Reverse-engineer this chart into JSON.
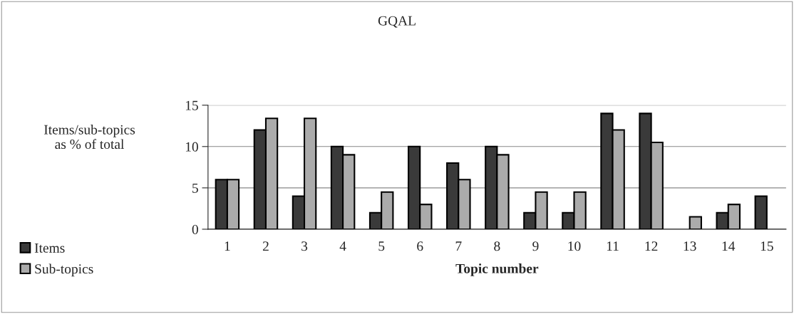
{
  "chart_data": {
    "type": "bar",
    "title": "GQAL",
    "xlabel": "Topic number",
    "ylabel": "Items/sub-topics\nas % of total",
    "categories": [
      "1",
      "2",
      "3",
      "4",
      "5",
      "6",
      "7",
      "8",
      "9",
      "10",
      "11",
      "12",
      "13",
      "14",
      "15"
    ],
    "series": [
      {
        "name": "Items",
        "color": "#3a3a3a",
        "values": [
          6,
          12,
          4,
          10,
          2,
          10,
          8,
          10,
          2,
          2,
          14,
          14,
          null,
          2,
          4
        ]
      },
      {
        "name": "Sub-topics",
        "color": "#ababab",
        "values": [
          6,
          13.4,
          13.4,
          9,
          4.5,
          3,
          6,
          9,
          4.5,
          4.5,
          12,
          10.5,
          1.5,
          3,
          null
        ]
      }
    ],
    "ylim": [
      0,
      15
    ],
    "yticks": [
      0,
      5,
      10,
      15
    ],
    "grid": "y",
    "legend": "bottom left"
  }
}
